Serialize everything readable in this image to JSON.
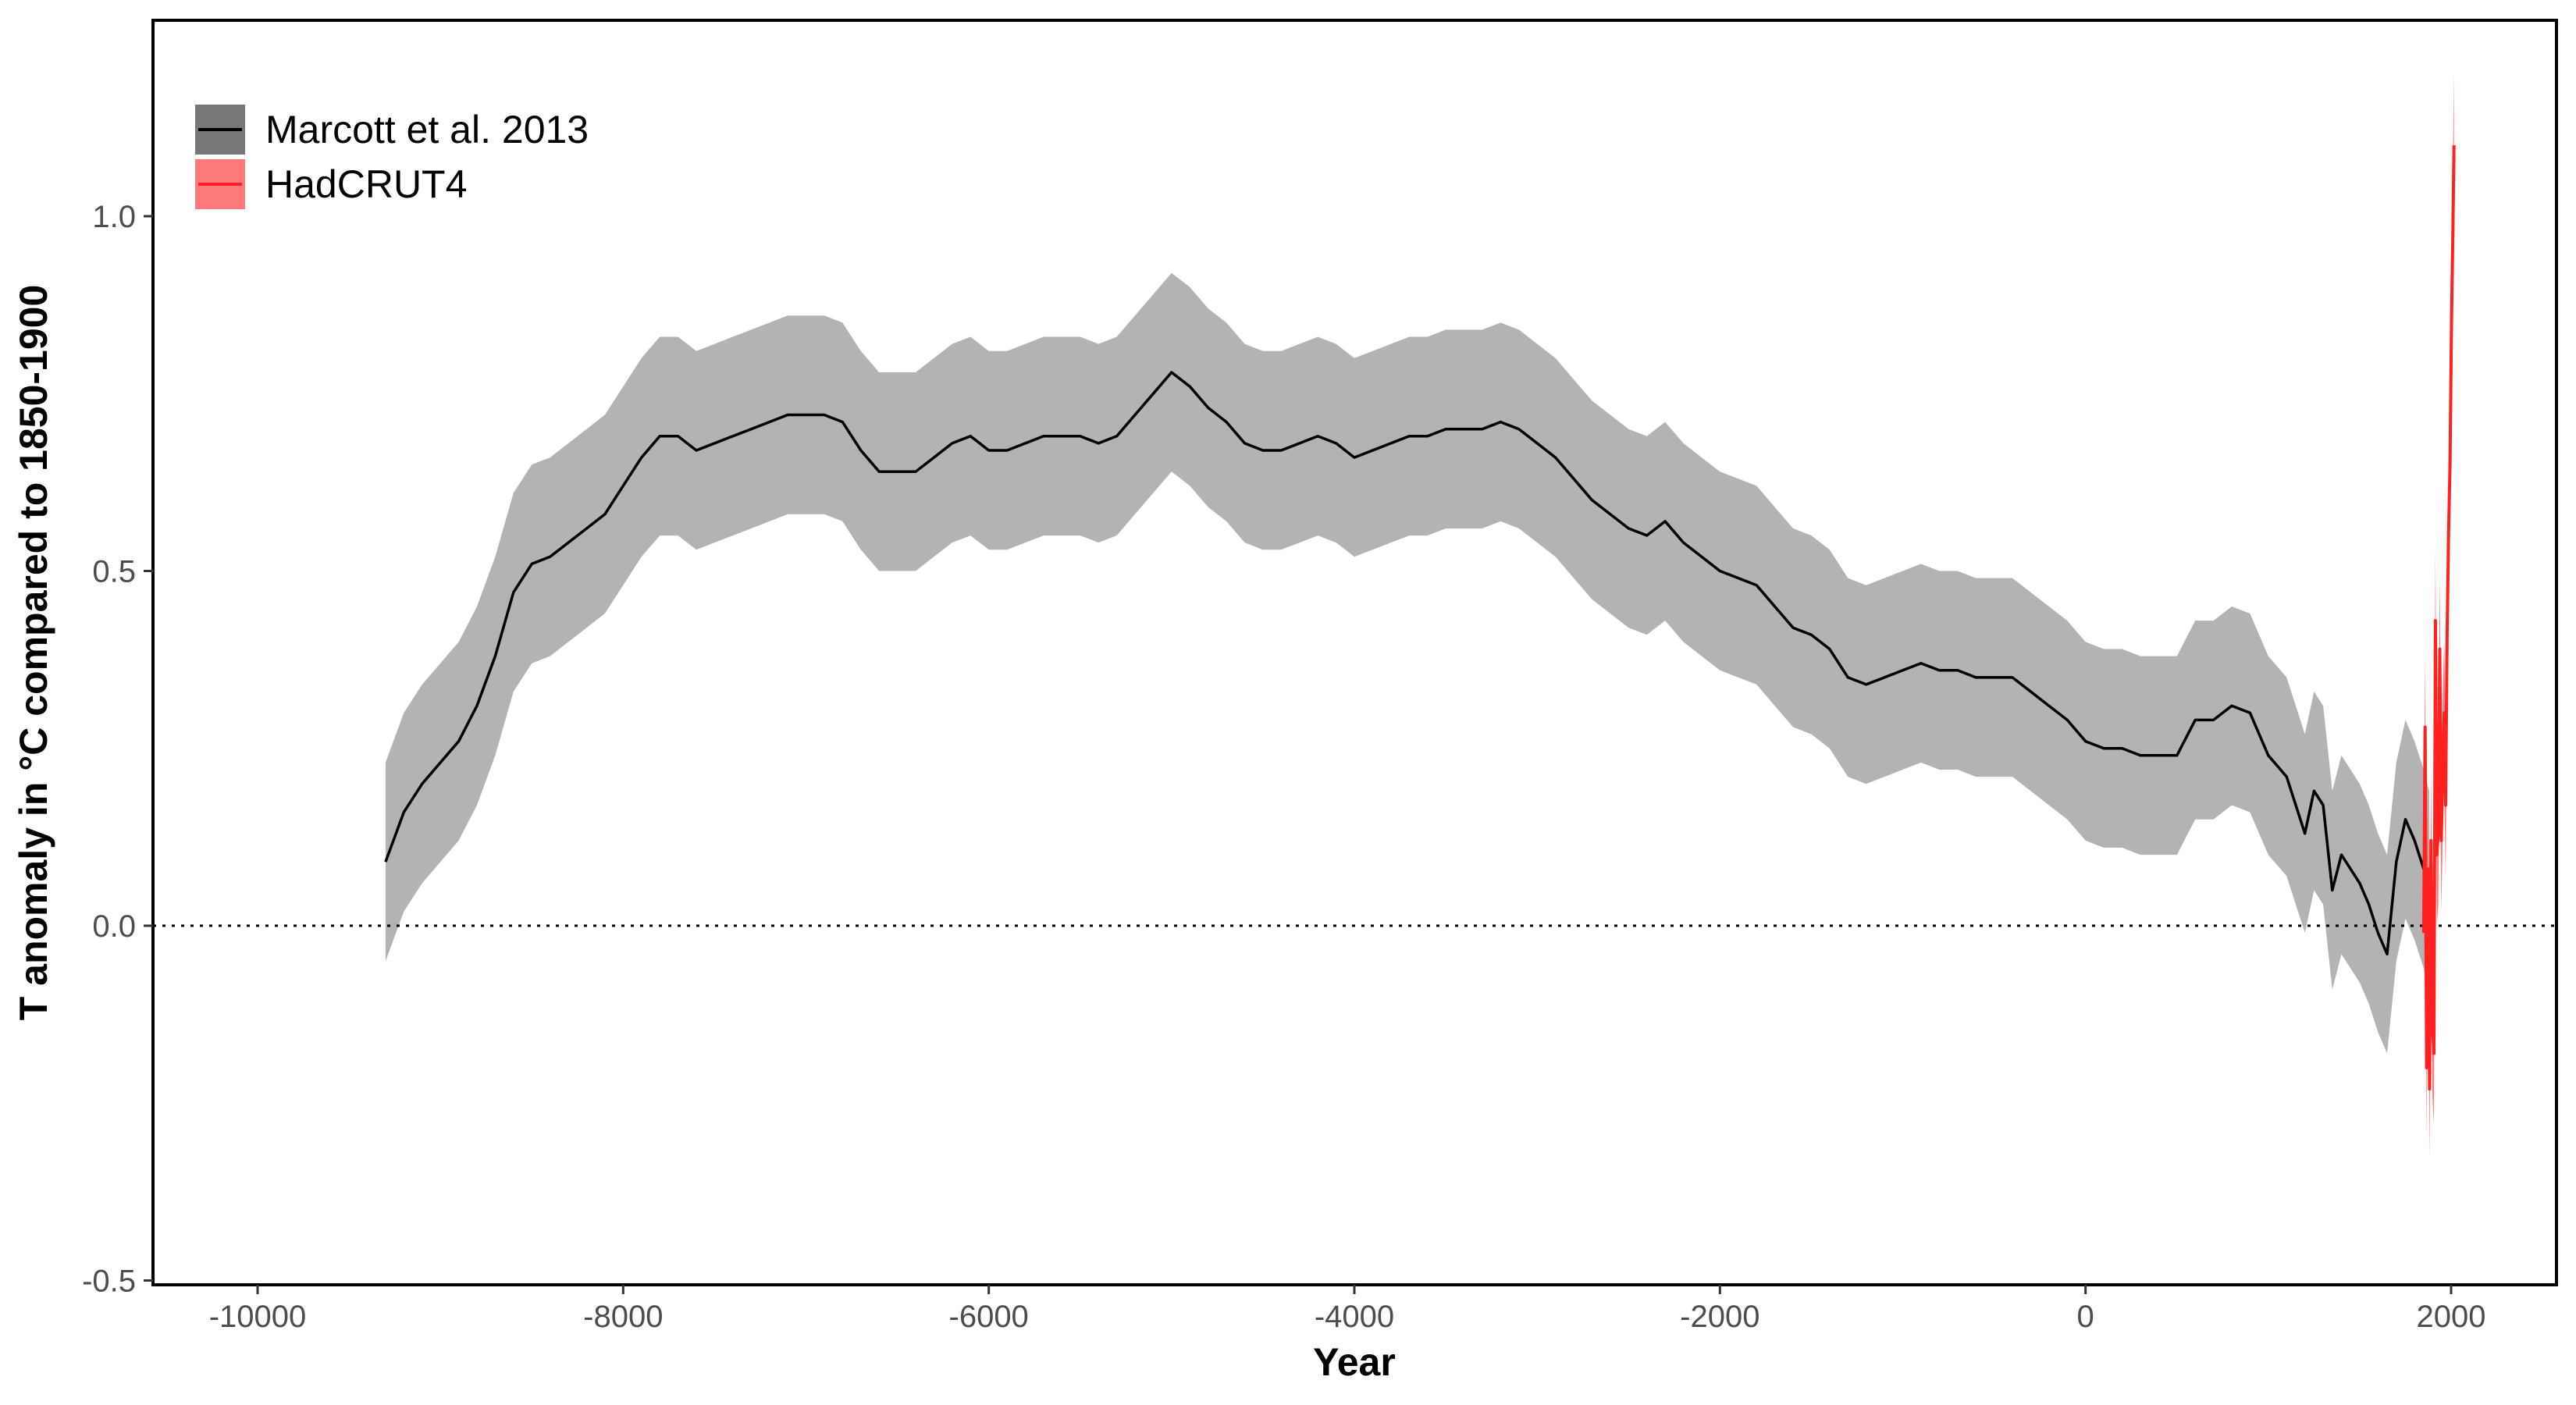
{
  "chart_data": {
    "type": "line",
    "title": "",
    "xlabel": "Year",
    "ylabel": "T anomaly in °C compared to 1850-1900",
    "xlim": [
      -10500,
      2600
    ],
    "ylim": [
      -0.5,
      1.25
    ],
    "xticks": [
      -10000,
      -8000,
      -6000,
      -4000,
      -2000,
      0,
      2000
    ],
    "xtick_labels": [
      "-10000",
      "-8000",
      "-6000",
      "-4000",
      "-2000",
      "0",
      "2000"
    ],
    "yticks": [
      -0.5,
      0.0,
      0.5,
      1.0
    ],
    "ytick_labels": [
      "-0.5",
      "0.0",
      "0.5",
      "1.0"
    ],
    "grid": false,
    "reference_line": {
      "y": 0.0,
      "style": "dotted",
      "color": "#000000"
    },
    "legend_position": "top-left",
    "series": [
      {
        "name": "Marcott et al. 2013",
        "line_color": "#000000",
        "band_color": "#b3b3b3",
        "legend_band_color": "#777777",
        "band_halfwidth": 0.14,
        "x": [
          -9300,
          -9200,
          -9100,
          -9000,
          -8900,
          -8800,
          -8700,
          -8600,
          -8500,
          -8400,
          -8300,
          -8200,
          -8100,
          -8000,
          -7900,
          -7800,
          -7700,
          -7600,
          -7500,
          -7400,
          -7300,
          -7200,
          -7100,
          -7000,
          -6900,
          -6800,
          -6700,
          -6600,
          -6500,
          -6400,
          -6300,
          -6200,
          -6100,
          -6000,
          -5900,
          -5800,
          -5700,
          -5600,
          -5500,
          -5400,
          -5300,
          -5200,
          -5100,
          -5000,
          -4900,
          -4800,
          -4700,
          -4600,
          -4500,
          -4400,
          -4300,
          -4200,
          -4100,
          -4000,
          -3900,
          -3800,
          -3700,
          -3600,
          -3500,
          -3400,
          -3300,
          -3200,
          -3100,
          -3000,
          -2900,
          -2800,
          -2700,
          -2600,
          -2500,
          -2400,
          -2300,
          -2200,
          -2100,
          -2000,
          -1900,
          -1800,
          -1700,
          -1600,
          -1500,
          -1400,
          -1300,
          -1200,
          -1100,
          -1000,
          -900,
          -800,
          -700,
          -600,
          -500,
          -400,
          -300,
          -200,
          -100,
          0,
          100,
          200,
          300,
          400,
          500,
          600,
          700,
          800,
          900,
          1000,
          1100,
          1200,
          1250,
          1300,
          1350,
          1400,
          1450,
          1500,
          1550,
          1600,
          1650,
          1700,
          1750,
          1800,
          1850,
          1880
        ],
        "y": [
          0.09,
          0.16,
          0.2,
          0.23,
          0.26,
          0.31,
          0.38,
          0.47,
          0.51,
          0.52,
          0.54,
          0.56,
          0.58,
          0.62,
          0.66,
          0.69,
          0.69,
          0.67,
          0.68,
          0.69,
          0.7,
          0.71,
          0.72,
          0.72,
          0.72,
          0.71,
          0.67,
          0.64,
          0.64,
          0.64,
          0.66,
          0.68,
          0.69,
          0.67,
          0.67,
          0.68,
          0.69,
          0.69,
          0.69,
          0.68,
          0.69,
          0.72,
          0.75,
          0.78,
          0.76,
          0.73,
          0.71,
          0.68,
          0.67,
          0.67,
          0.68,
          0.69,
          0.68,
          0.66,
          0.67,
          0.68,
          0.69,
          0.69,
          0.7,
          0.7,
          0.7,
          0.71,
          0.7,
          0.68,
          0.66,
          0.63,
          0.6,
          0.58,
          0.56,
          0.55,
          0.57,
          0.54,
          0.52,
          0.5,
          0.49,
          0.48,
          0.45,
          0.42,
          0.41,
          0.39,
          0.35,
          0.34,
          0.35,
          0.36,
          0.37,
          0.36,
          0.36,
          0.35,
          0.35,
          0.35,
          0.33,
          0.31,
          0.29,
          0.26,
          0.25,
          0.25,
          0.24,
          0.24,
          0.24,
          0.29,
          0.29,
          0.31,
          0.3,
          0.24,
          0.21,
          0.13,
          0.19,
          0.17,
          0.05,
          0.1,
          0.08,
          0.06,
          0.03,
          -0.01,
          -0.04,
          0.09,
          0.15,
          0.12,
          0.08,
          0.05
        ]
      },
      {
        "name": "HadCRUT4",
        "line_color": "#ff2020",
        "band_color": "#ff7a7a",
        "legend_band_color": "#ff7a7a",
        "band_halfwidth": 0.1,
        "x": [
          1850,
          1858,
          1866,
          1874,
          1882,
          1890,
          1898,
          1906,
          1914,
          1922,
          1930,
          1938,
          1946,
          1954,
          1962,
          1970,
          1978,
          1986,
          1994,
          2002,
          2010,
          2016
        ],
        "y": [
          -0.01,
          0.28,
          -0.2,
          0.08,
          -0.23,
          0.12,
          -0.14,
          -0.18,
          0.43,
          0.1,
          0.13,
          0.39,
          0.12,
          0.22,
          0.3,
          0.17,
          0.4,
          0.55,
          0.65,
          0.85,
          0.98,
          1.1
        ]
      }
    ]
  }
}
